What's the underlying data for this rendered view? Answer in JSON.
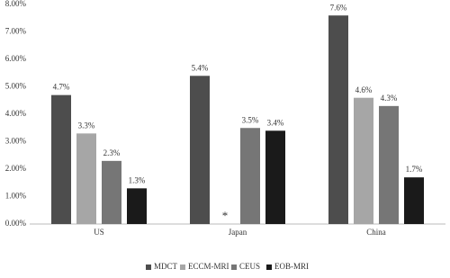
{
  "chart_data": {
    "type": "bar",
    "categories": [
      "US",
      "Japan",
      "China"
    ],
    "series": [
      {
        "name": "MDCT",
        "color": "#4d4d4d",
        "values": [
          4.7,
          5.4,
          7.6
        ],
        "value_labels": [
          "4.7%",
          "5.4%",
          "7.6%"
        ]
      },
      {
        "name": "ECCM-MRI",
        "color": "#a6a6a6",
        "values": [
          3.3,
          null,
          4.6
        ],
        "value_labels": [
          "3.3%",
          null,
          "4.6%"
        ]
      },
      {
        "name": "CEUS",
        "color": "#767676",
        "values": [
          2.3,
          3.5,
          4.3
        ],
        "value_labels": [
          "2.3%",
          "3.5%",
          "4.3%"
        ]
      },
      {
        "name": "EOB-MRI",
        "color": "#1a1a1a",
        "values": [
          1.3,
          3.4,
          1.7
        ],
        "value_labels": [
          "1.3%",
          "3.4%",
          "1.7%"
        ]
      }
    ],
    "annotation": "*",
    "ylim": [
      0,
      8
    ],
    "yticks": [
      {
        "value": 0,
        "label": "0.00%"
      },
      {
        "value": 1,
        "label": "1.00%"
      },
      {
        "value": 2,
        "label": "2.00%"
      },
      {
        "value": 3,
        "label": "3.00%"
      },
      {
        "value": 4,
        "label": "4.00%"
      },
      {
        "value": 5,
        "label": "5.00%"
      },
      {
        "value": 6,
        "label": "6.00%"
      },
      {
        "value": 7,
        "label": "7.00%"
      },
      {
        "value": 8,
        "label": "8.00%"
      }
    ],
    "grid": false,
    "legend": "bottom"
  }
}
